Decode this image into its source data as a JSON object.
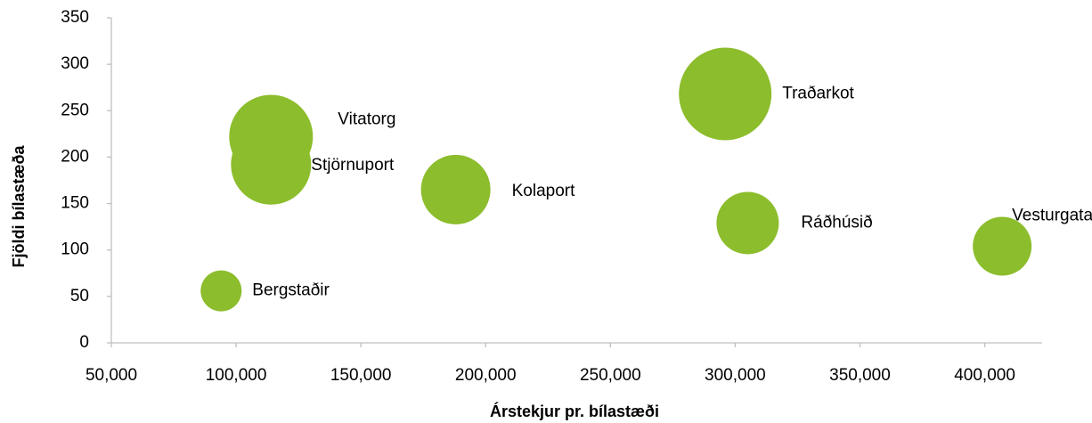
{
  "chart_data": {
    "type": "bubble",
    "x_label": "Árstekjur pr. bílastæði",
    "y_label": "Fjöldi bílastæða",
    "color": "#8cbd2c",
    "points": [
      {
        "label": "Bergstaðir",
        "x": 94000,
        "y": 56,
        "size": 529
      },
      {
        "label": "Vitatorg",
        "x": 114000,
        "y": 222,
        "size": 2209
      },
      {
        "label": "Stjörnuport",
        "x": 114000,
        "y": 192,
        "size": 2025
      },
      {
        "label": "Kolaport",
        "x": 188000,
        "y": 165,
        "size": 1521
      },
      {
        "label": "Traðarkot",
        "x": 296000,
        "y": 268,
        "size": 2704
      },
      {
        "label": "Ráðhúsið",
        "x": 305000,
        "y": 129,
        "size": 1225
      },
      {
        "label": "Vesturgata",
        "x": 407000,
        "y": 104,
        "size": 1089
      }
    ],
    "xlim": [
      50000,
      423000
    ],
    "xticks": [
      {
        "value": 50000,
        "label": "50,000"
      },
      {
        "value": 100000,
        "label": "100,000"
      },
      {
        "value": 150000,
        "label": "150,000"
      },
      {
        "value": 200000,
        "label": "200,000"
      },
      {
        "value": 250000,
        "label": "250,000"
      },
      {
        "value": 300000,
        "label": "300,000"
      },
      {
        "value": 350000,
        "label": "350,000"
      },
      {
        "value": 400000,
        "label": "400,000"
      }
    ],
    "ylim": [
      0,
      350
    ],
    "yticks": [
      0,
      50,
      100,
      150,
      200,
      250,
      300,
      350
    ],
    "grid": false
  }
}
